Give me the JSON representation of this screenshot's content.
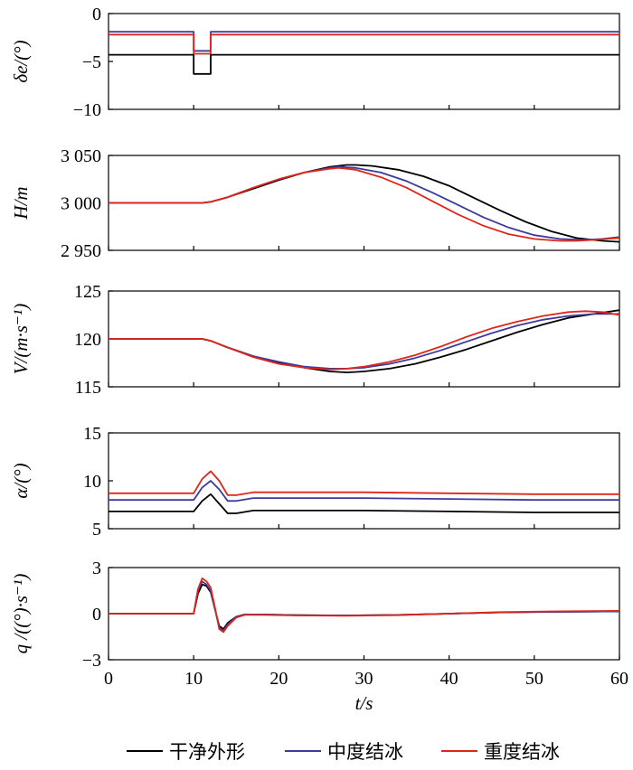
{
  "chart_data": [
    {
      "type": "line",
      "ylabel": "δe/(°)",
      "ylim": [
        -10,
        0
      ],
      "yticks": [
        0,
        -5,
        -10
      ],
      "ytick_labels": [
        "0",
        "−5",
        "−10"
      ],
      "xlim": [
        0,
        60
      ],
      "series": [
        {
          "name": "干净外形",
          "color": "#000000",
          "x": [
            0,
            10,
            10,
            12,
            12,
            60
          ],
          "y": [
            -4.3,
            -4.3,
            -6.3,
            -6.3,
            -4.3,
            -4.3
          ]
        },
        {
          "name": "中度结冰",
          "color": "#3b3b9c",
          "x": [
            0,
            10,
            10,
            12,
            12,
            60
          ],
          "y": [
            -1.9,
            -1.9,
            -3.9,
            -3.9,
            -1.9,
            -1.9
          ]
        },
        {
          "name": "重度结冰",
          "color": "#e0251b",
          "x": [
            0,
            10,
            10,
            12,
            12,
            60
          ],
          "y": [
            -2.2,
            -2.2,
            -4.2,
            -4.2,
            -2.2,
            -2.2
          ]
        }
      ]
    },
    {
      "type": "line",
      "ylabel": "H/m",
      "ylim": [
        2950,
        3050
      ],
      "yticks": [
        3050,
        3000,
        2950
      ],
      "ytick_labels": [
        "3 050",
        "3 000",
        "2 950"
      ],
      "xlim": [
        0,
        60
      ],
      "series": [
        {
          "name": "干净外形",
          "color": "#000000",
          "x": [
            0,
            10,
            11,
            12,
            14,
            17,
            20,
            23,
            26,
            28,
            29,
            31,
            34,
            37,
            40,
            43,
            46,
            49,
            52,
            55,
            58,
            60
          ],
          "y": [
            3000,
            3000,
            3000,
            3001,
            3006,
            3015,
            3024,
            3032,
            3038,
            3040,
            3040,
            3039,
            3035,
            3028,
            3018,
            3005,
            2992,
            2980,
            2970,
            2963,
            2960,
            2959
          ]
        },
        {
          "name": "中度结冰",
          "color": "#3b3b9c",
          "x": [
            0,
            10,
            11,
            12,
            14,
            17,
            20,
            23,
            26,
            27,
            29,
            32,
            35,
            38,
            41,
            44,
            47,
            50,
            53,
            56,
            58,
            60
          ],
          "y": [
            3000,
            3000,
            3000,
            3001,
            3006,
            3016,
            3025,
            3032,
            3037,
            3038,
            3037,
            3032,
            3023,
            3011,
            2998,
            2985,
            2974,
            2966,
            2962,
            2961,
            2962,
            2964
          ]
        },
        {
          "name": "重度结冰",
          "color": "#e0251b",
          "x": [
            0,
            10,
            11,
            12,
            14,
            17,
            20,
            23,
            26,
            27,
            29,
            32,
            35,
            38,
            41,
            44,
            47,
            50,
            53,
            55,
            57,
            60
          ],
          "y": [
            3000,
            3000,
            3000,
            3001,
            3006,
            3016,
            3025,
            3032,
            3036,
            3037,
            3035,
            3027,
            3016,
            3002,
            2988,
            2976,
            2967,
            2962,
            2960,
            2960,
            2961,
            2963
          ]
        }
      ]
    },
    {
      "type": "line",
      "ylabel": "V/(m·s⁻¹)",
      "ylim": [
        115,
        125
      ],
      "yticks": [
        125,
        120,
        115
      ],
      "ytick_labels": [
        "125",
        "120",
        "115"
      ],
      "xlim": [
        0,
        60
      ],
      "series": [
        {
          "name": "干净外形",
          "color": "#000000",
          "x": [
            0,
            10,
            11,
            12,
            14,
            17,
            20,
            23,
            26,
            28,
            30,
            33,
            36,
            39,
            42,
            45,
            48,
            51,
            54,
            57,
            60
          ],
          "y": [
            120,
            120,
            120,
            119.8,
            119.1,
            118.2,
            117.5,
            117,
            116.6,
            116.5,
            116.6,
            116.9,
            117.4,
            118.1,
            118.9,
            119.8,
            120.7,
            121.5,
            122.2,
            122.6,
            123
          ]
        },
        {
          "name": "中度结冰",
          "color": "#3b3b9c",
          "x": [
            0,
            10,
            11,
            12,
            14,
            17,
            20,
            23,
            26,
            28,
            30,
            33,
            36,
            39,
            42,
            45,
            48,
            51,
            54,
            57,
            60
          ],
          "y": [
            120,
            120,
            120,
            119.8,
            119.1,
            118.2,
            117.6,
            117.1,
            116.9,
            116.9,
            117,
            117.4,
            118,
            118.8,
            119.7,
            120.6,
            121.4,
            122,
            122.4,
            122.6,
            122.6
          ]
        },
        {
          "name": "重度结冰",
          "color": "#e0251b",
          "x": [
            0,
            10,
            11,
            12,
            14,
            17,
            20,
            23,
            26,
            28,
            30,
            33,
            36,
            39,
            42,
            45,
            48,
            51,
            54,
            56,
            58,
            60
          ],
          "y": [
            120,
            120,
            120,
            119.8,
            119.1,
            118.1,
            117.4,
            117,
            116.8,
            116.9,
            117.1,
            117.6,
            118.3,
            119.2,
            120.2,
            121.1,
            121.8,
            122.4,
            122.8,
            122.9,
            122.8,
            122.5
          ]
        }
      ]
    },
    {
      "type": "line",
      "ylabel": "α/(°)",
      "ylim": [
        5,
        15
      ],
      "yticks": [
        15,
        10,
        5
      ],
      "ytick_labels": [
        "15",
        "10",
        "5"
      ],
      "xlim": [
        0,
        60
      ],
      "series": [
        {
          "name": "干净外形",
          "color": "#000000",
          "x": [
            0,
            10,
            11,
            12,
            13,
            14,
            15,
            17,
            20,
            30,
            40,
            50,
            60
          ],
          "y": [
            6.8,
            6.8,
            7.9,
            8.6,
            7.6,
            6.6,
            6.6,
            6.9,
            6.9,
            6.9,
            6.8,
            6.7,
            6.7
          ]
        },
        {
          "name": "中度结冰",
          "color": "#3b3b9c",
          "x": [
            0,
            10,
            11,
            12,
            13,
            14,
            15,
            17,
            20,
            30,
            40,
            50,
            60
          ],
          "y": [
            8,
            8,
            9.3,
            10,
            9.1,
            7.9,
            7.9,
            8.2,
            8.2,
            8.2,
            8.1,
            8,
            8
          ]
        },
        {
          "name": "重度结冰",
          "color": "#e0251b",
          "x": [
            0,
            10,
            11,
            12,
            13,
            14,
            15,
            17,
            20,
            30,
            40,
            50,
            60
          ],
          "y": [
            8.7,
            8.7,
            10.2,
            11,
            10,
            8.5,
            8.5,
            8.8,
            8.8,
            8.8,
            8.7,
            8.6,
            8.6
          ]
        }
      ]
    },
    {
      "type": "line",
      "ylabel": "q /((°)·s⁻¹)",
      "ylim": [
        -3,
        3
      ],
      "yticks": [
        3,
        0,
        -3
      ],
      "ytick_labels": [
        "3",
        "0",
        "−3"
      ],
      "xlabel": "t/s",
      "xlim": [
        0,
        60
      ],
      "xticks": [
        0,
        10,
        20,
        30,
        40,
        50,
        60
      ],
      "series": [
        {
          "name": "干净外形",
          "color": "#000000",
          "x": [
            0,
            10,
            10.5,
            11,
            11.5,
            12,
            12.5,
            13,
            13.5,
            14,
            15,
            16,
            18,
            22,
            28,
            34,
            40,
            46,
            52,
            60
          ],
          "y": [
            0,
            0,
            1.3,
            1.9,
            1.8,
            1.4,
            0.3,
            -0.8,
            -1,
            -0.6,
            -0.2,
            -0.05,
            -0.05,
            -0.1,
            -0.12,
            -0.08,
            0,
            0.08,
            0.12,
            0.15
          ]
        },
        {
          "name": "中度结冰",
          "color": "#3b3b9c",
          "x": [
            0,
            10,
            10.5,
            11,
            11.5,
            12,
            12.5,
            13,
            13.5,
            14,
            15,
            16,
            18,
            22,
            28,
            34,
            40,
            46,
            52,
            60
          ],
          "y": [
            0,
            0,
            1.5,
            2.1,
            1.9,
            1.5,
            0.3,
            -0.9,
            -1.1,
            -0.7,
            -0.2,
            -0.05,
            -0.05,
            -0.1,
            -0.12,
            -0.08,
            0,
            0.08,
            0.12,
            0.15
          ]
        },
        {
          "name": "重度结冰",
          "color": "#e0251b",
          "x": [
            0,
            10,
            10.5,
            11,
            11.5,
            12,
            12.5,
            13,
            13.5,
            14,
            15,
            16,
            18,
            22,
            28,
            34,
            40,
            46,
            52,
            60
          ],
          "y": [
            0,
            0,
            1.6,
            2.3,
            2.1,
            1.7,
            0.4,
            -1,
            -1.2,
            -0.8,
            -0.25,
            -0.08,
            -0.08,
            -0.12,
            -0.14,
            -0.1,
            0,
            0.1,
            0.15,
            0.18
          ]
        }
      ]
    }
  ],
  "legend": {
    "placement": "bottom",
    "items": [
      {
        "label": "干净外形",
        "color": "#000000"
      },
      {
        "label": "中度结冰",
        "color": "#3b3b9c"
      },
      {
        "label": "重度结冰",
        "color": "#e0251b"
      }
    ]
  }
}
